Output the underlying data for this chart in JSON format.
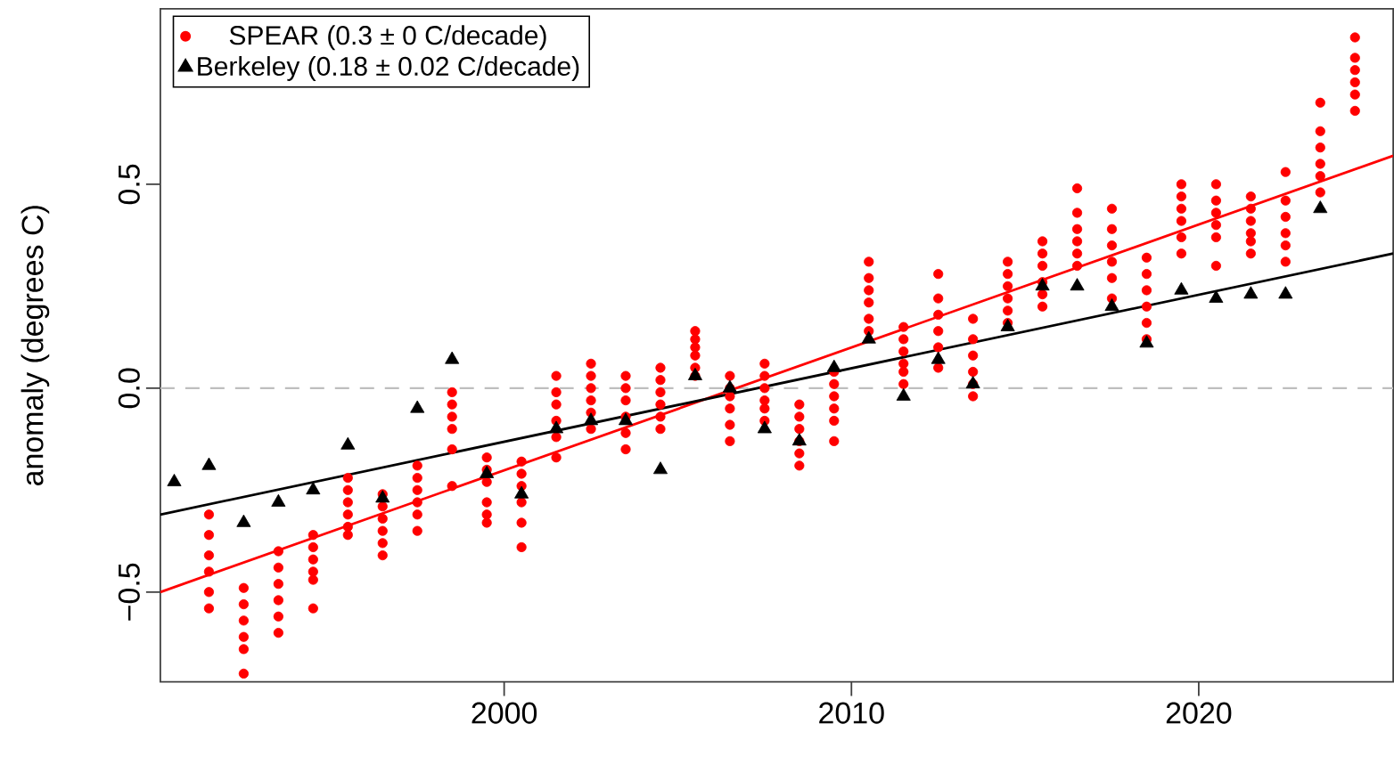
{
  "chart_data": {
    "type": "scatter",
    "ylabel": "anomaly (degrees C)",
    "xlim": [
      1990.1,
      2025.6
    ],
    "ylim": [
      -0.72,
      0.93
    ],
    "xticks": [
      2000,
      2010,
      2020
    ],
    "yticks": [
      {
        "value": -0.5,
        "label": "−0.5"
      },
      {
        "value": 0,
        "label": "0.0"
      },
      {
        "value": 0.5,
        "label": "0.5"
      }
    ],
    "legend": "top left",
    "ref_lines": [
      {
        "axis": "y",
        "value": 0,
        "color": "#bebebe",
        "line_style": "dashed"
      }
    ],
    "series": [
      {
        "name": "SPEAR (0.3 ± 0 C/decade)",
        "marker": "circle",
        "color": "#ff0000",
        "x": [
          1991.5,
          1991.5,
          1991.5,
          1991.5,
          1991.5,
          1991.5,
          1992.5,
          1992.5,
          1992.5,
          1992.5,
          1992.5,
          1992.5,
          1993.5,
          1993.5,
          1993.5,
          1993.5,
          1993.5,
          1993.5,
          1994.5,
          1994.5,
          1994.5,
          1994.5,
          1994.5,
          1994.5,
          1995.5,
          1995.5,
          1995.5,
          1995.5,
          1995.5,
          1995.5,
          1996.5,
          1996.5,
          1996.5,
          1996.5,
          1996.5,
          1996.5,
          1997.5,
          1997.5,
          1997.5,
          1997.5,
          1997.5,
          1997.5,
          1998.5,
          1998.5,
          1998.5,
          1998.5,
          1998.5,
          1998.5,
          1999.5,
          1999.5,
          1999.5,
          1999.5,
          1999.5,
          1999.5,
          2000.5,
          2000.5,
          2000.5,
          2000.5,
          2000.5,
          2000.5,
          2001.5,
          2001.5,
          2001.5,
          2001.5,
          2001.5,
          2001.5,
          2002.5,
          2002.5,
          2002.5,
          2002.5,
          2002.5,
          2002.5,
          2003.5,
          2003.5,
          2003.5,
          2003.5,
          2003.5,
          2003.5,
          2004.5,
          2004.5,
          2004.5,
          2004.5,
          2004.5,
          2004.5,
          2005.5,
          2005.5,
          2005.5,
          2005.5,
          2005.5,
          2005.5,
          2006.5,
          2006.5,
          2006.5,
          2006.5,
          2006.5,
          2006.5,
          2007.5,
          2007.5,
          2007.5,
          2007.5,
          2007.5,
          2007.5,
          2008.5,
          2008.5,
          2008.5,
          2008.5,
          2008.5,
          2008.5,
          2009.5,
          2009.5,
          2009.5,
          2009.5,
          2009.5,
          2009.5,
          2010.5,
          2010.5,
          2010.5,
          2010.5,
          2010.5,
          2010.5,
          2011.5,
          2011.5,
          2011.5,
          2011.5,
          2011.5,
          2011.5,
          2012.5,
          2012.5,
          2012.5,
          2012.5,
          2012.5,
          2012.5,
          2013.5,
          2013.5,
          2013.5,
          2013.5,
          2013.5,
          2013.5,
          2014.5,
          2014.5,
          2014.5,
          2014.5,
          2014.5,
          2014.5,
          2015.5,
          2015.5,
          2015.5,
          2015.5,
          2015.5,
          2015.5,
          2016.5,
          2016.5,
          2016.5,
          2016.5,
          2016.5,
          2016.5,
          2017.5,
          2017.5,
          2017.5,
          2017.5,
          2017.5,
          2017.5,
          2018.5,
          2018.5,
          2018.5,
          2018.5,
          2018.5,
          2018.5,
          2019.5,
          2019.5,
          2019.5,
          2019.5,
          2019.5,
          2019.5,
          2020.5,
          2020.5,
          2020.5,
          2020.5,
          2020.5,
          2020.5,
          2021.5,
          2021.5,
          2021.5,
          2021.5,
          2021.5,
          2021.5,
          2022.5,
          2022.5,
          2022.5,
          2022.5,
          2022.5,
          2022.5,
          2023.5,
          2023.5,
          2023.5,
          2023.5,
          2023.5,
          2023.5,
          2024.5,
          2024.5,
          2024.5,
          2024.5,
          2024.5,
          2024.5
        ],
        "values": [
          -0.31,
          -0.36,
          -0.41,
          -0.45,
          -0.5,
          -0.54,
          -0.49,
          -0.53,
          -0.57,
          -0.61,
          -0.64,
          -0.7,
          -0.4,
          -0.44,
          -0.48,
          -0.52,
          -0.56,
          -0.6,
          -0.36,
          -0.39,
          -0.42,
          -0.45,
          -0.47,
          -0.54,
          -0.22,
          -0.25,
          -0.28,
          -0.31,
          -0.34,
          -0.36,
          -0.26,
          -0.29,
          -0.32,
          -0.35,
          -0.38,
          -0.41,
          -0.19,
          -0.22,
          -0.25,
          -0.28,
          -0.31,
          -0.35,
          -0.01,
          -0.04,
          -0.07,
          -0.1,
          -0.15,
          -0.24,
          -0.17,
          -0.2,
          -0.23,
          -0.28,
          -0.31,
          -0.33,
          -0.18,
          -0.21,
          -0.24,
          -0.28,
          -0.33,
          -0.39,
          0.03,
          -0.01,
          -0.04,
          -0.08,
          -0.12,
          -0.17,
          0.06,
          0.03,
          0.0,
          -0.03,
          -0.06,
          -0.1,
          0.03,
          0.0,
          -0.03,
          -0.07,
          -0.11,
          -0.15,
          0.05,
          0.02,
          -0.01,
          -0.04,
          -0.07,
          -0.1,
          0.14,
          0.12,
          0.1,
          0.08,
          0.05,
          0.03,
          0.03,
          0.0,
          -0.02,
          -0.05,
          -0.09,
          -0.13,
          0.06,
          0.03,
          0.0,
          -0.03,
          -0.05,
          -0.08,
          -0.04,
          -0.07,
          -0.1,
          -0.13,
          -0.16,
          -0.19,
          0.04,
          0.01,
          -0.02,
          -0.05,
          -0.08,
          -0.13,
          0.31,
          0.27,
          0.24,
          0.21,
          0.17,
          0.14,
          0.15,
          0.12,
          0.09,
          0.06,
          0.04,
          0.01,
          0.28,
          0.22,
          0.18,
          0.14,
          0.1,
          0.05,
          0.17,
          0.12,
          0.08,
          0.04,
          0.01,
          -0.02,
          0.31,
          0.28,
          0.25,
          0.22,
          0.19,
          0.16,
          0.36,
          0.33,
          0.3,
          0.26,
          0.23,
          0.2,
          0.49,
          0.43,
          0.39,
          0.36,
          0.33,
          0.3,
          0.44,
          0.39,
          0.35,
          0.31,
          0.27,
          0.22,
          0.32,
          0.28,
          0.24,
          0.2,
          0.16,
          0.12,
          0.5,
          0.47,
          0.44,
          0.41,
          0.37,
          0.33,
          0.5,
          0.46,
          0.43,
          0.4,
          0.37,
          0.3,
          0.47,
          0.44,
          0.41,
          0.38,
          0.36,
          0.33,
          0.53,
          0.46,
          0.42,
          0.38,
          0.35,
          0.31,
          0.7,
          0.63,
          0.59,
          0.55,
          0.52,
          0.48,
          0.86,
          0.81,
          0.78,
          0.75,
          0.72,
          0.68
        ]
      },
      {
        "name": "Berkeley (0.18 ± 0.02 C/decade)",
        "marker": "triangle",
        "color": "#000000",
        "x": [
          1990.5,
          1991.5,
          1992.5,
          1993.5,
          1994.5,
          1995.5,
          1996.5,
          1997.5,
          1998.5,
          1999.5,
          2000.5,
          2001.5,
          2002.5,
          2003.5,
          2004.5,
          2005.5,
          2006.5,
          2007.5,
          2008.5,
          2009.5,
          2010.5,
          2011.5,
          2012.5,
          2013.5,
          2014.5,
          2015.5,
          2016.5,
          2017.5,
          2018.5,
          2019.5,
          2020.5,
          2021.5,
          2022.5,
          2023.5
        ],
        "values": [
          -0.23,
          -0.19,
          -0.33,
          -0.28,
          -0.25,
          -0.14,
          -0.27,
          -0.05,
          0.07,
          -0.21,
          -0.26,
          -0.1,
          -0.08,
          -0.08,
          -0.2,
          0.03,
          0.0,
          -0.1,
          -0.13,
          0.05,
          0.12,
          -0.02,
          0.07,
          0.01,
          0.15,
          0.25,
          0.25,
          0.2,
          0.11,
          0.24,
          0.22,
          0.23,
          0.23,
          0.44
        ]
      },
      {
        "type": "line",
        "line_style": "solid",
        "color": "#ff0000",
        "x": [
          1990.1,
          2025.6
        ],
        "values": [
          -0.5,
          0.57
        ]
      },
      {
        "type": "line",
        "line_style": "solid",
        "color": "#000000",
        "x": [
          1990.1,
          2025.6
        ],
        "values": [
          -0.31,
          0.33
        ]
      }
    ]
  }
}
